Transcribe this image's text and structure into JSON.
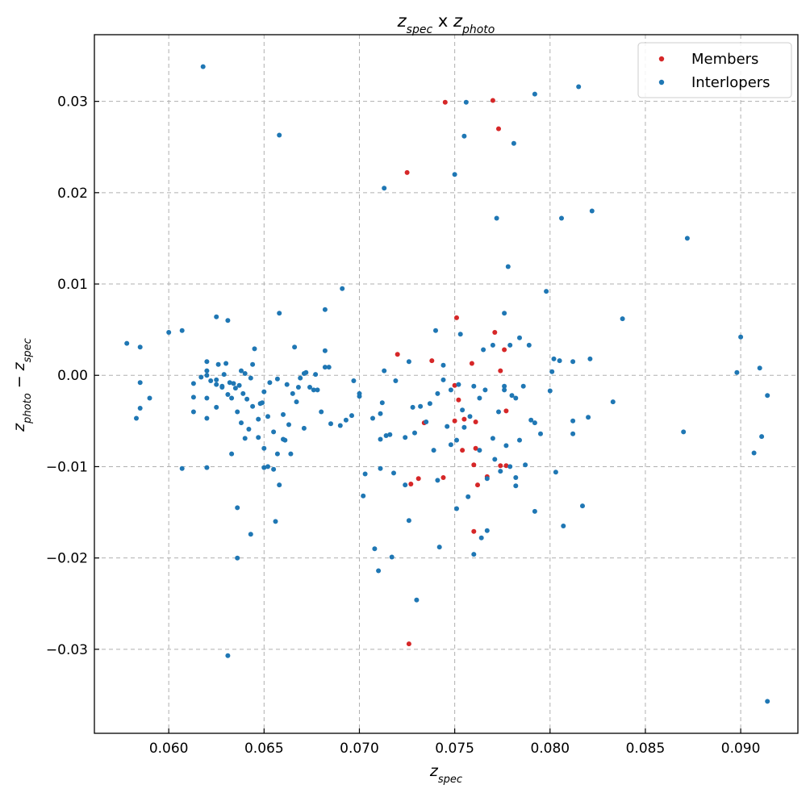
{
  "chart_data": {
    "type": "scatter",
    "title": {
      "var1": "z",
      "sub1": "spec",
      "sep": " x ",
      "var2": "z",
      "sub2": "photo"
    },
    "xlabel": {
      "var": "z",
      "sub": "spec"
    },
    "ylabel": {
      "var1": "z",
      "sub1": "photo",
      "op": " − ",
      "var2": "z",
      "sub2": "spec"
    },
    "xlim": [
      0.0561,
      0.093
    ],
    "ylim": [
      -0.0392,
      0.0373
    ],
    "x_ticks": [
      0.06,
      0.065,
      0.07,
      0.075,
      0.08,
      0.085,
      0.09
    ],
    "x_tick_labels": [
      "0.060",
      "0.065",
      "0.070",
      "0.075",
      "0.080",
      "0.085",
      "0.090"
    ],
    "y_ticks": [
      -0.03,
      -0.02,
      -0.01,
      0.0,
      0.01,
      0.02,
      0.03
    ],
    "y_tick_labels": [
      "−0.03",
      "−0.02",
      "−0.01",
      "0.00",
      "0.01",
      "0.02",
      "0.03"
    ],
    "grid": true,
    "legend_position": "top-right",
    "series": [
      {
        "name": "Members",
        "color": "#d62728",
        "points": [
          [
            0.0745,
            0.0299
          ],
          [
            0.077,
            0.0301
          ],
          [
            0.0773,
            0.027
          ],
          [
            0.0725,
            0.0222
          ],
          [
            0.0751,
            0.0063
          ],
          [
            0.0771,
            0.0047
          ],
          [
            0.0776,
            0.0028
          ],
          [
            0.072,
            0.0023
          ],
          [
            0.0738,
            0.0016
          ],
          [
            0.0759,
            0.0013
          ],
          [
            0.0774,
            0.0005
          ],
          [
            0.075,
            -0.0011
          ],
          [
            0.0752,
            -0.0027
          ],
          [
            0.0755,
            -0.0048
          ],
          [
            0.075,
            -0.005
          ],
          [
            0.0734,
            -0.0052
          ],
          [
            0.0761,
            -0.0051
          ],
          [
            0.0777,
            -0.0039
          ],
          [
            0.0754,
            -0.0082
          ],
          [
            0.0761,
            -0.008
          ],
          [
            0.076,
            -0.0098
          ],
          [
            0.0774,
            -0.0099
          ],
          [
            0.0777,
            -0.0099
          ],
          [
            0.0767,
            -0.0111
          ],
          [
            0.0744,
            -0.0112
          ],
          [
            0.0731,
            -0.0113
          ],
          [
            0.0727,
            -0.0119
          ],
          [
            0.0762,
            -0.012
          ],
          [
            0.076,
            -0.0171
          ],
          [
            0.0726,
            -0.0294
          ]
        ]
      },
      {
        "name": "Interlopers",
        "color": "#1f77b4",
        "points": [
          [
            0.0618,
            0.0338
          ],
          [
            0.0658,
            0.0263
          ],
          [
            0.0756,
            0.0299
          ],
          [
            0.0792,
            0.0308
          ],
          [
            0.0815,
            0.0316
          ],
          [
            0.0755,
            0.0262
          ],
          [
            0.0781,
            0.0254
          ],
          [
            0.075,
            0.022
          ],
          [
            0.0713,
            0.0205
          ],
          [
            0.0772,
            0.0172
          ],
          [
            0.0806,
            0.0172
          ],
          [
            0.0822,
            0.018
          ],
          [
            0.0872,
            0.015
          ],
          [
            0.0778,
            0.0119
          ],
          [
            0.0691,
            0.0095
          ],
          [
            0.0798,
            0.0092
          ],
          [
            0.0682,
            0.0072
          ],
          [
            0.0658,
            0.0068
          ],
          [
            0.0625,
            0.0064
          ],
          [
            0.0631,
            0.006
          ],
          [
            0.0838,
            0.0062
          ],
          [
            0.06,
            0.0047
          ],
          [
            0.0607,
            0.0049
          ],
          [
            0.074,
            0.0049
          ],
          [
            0.0753,
            0.0045
          ],
          [
            0.09,
            0.0042
          ],
          [
            0.0776,
            0.0068
          ],
          [
            0.0578,
            0.0035
          ],
          [
            0.0585,
            0.0031
          ],
          [
            0.0645,
            0.0029
          ],
          [
            0.0666,
            0.0031
          ],
          [
            0.0682,
            0.0027
          ],
          [
            0.0765,
            0.0028
          ],
          [
            0.077,
            0.0033
          ],
          [
            0.0779,
            0.0033
          ],
          [
            0.0784,
            0.0041
          ],
          [
            0.0789,
            0.0033
          ],
          [
            0.062,
            0.0015
          ],
          [
            0.063,
            0.0013
          ],
          [
            0.0644,
            0.0012
          ],
          [
            0.0682,
            0.0009
          ],
          [
            0.0713,
            0.0005
          ],
          [
            0.0726,
            0.0015
          ],
          [
            0.0744,
            0.0011
          ],
          [
            0.0802,
            0.0018
          ],
          [
            0.0805,
            0.0016
          ],
          [
            0.0812,
            0.0015
          ],
          [
            0.0821,
            0.0018
          ],
          [
            0.0898,
            0.0003
          ],
          [
            0.091,
            0.0008
          ],
          [
            0.0585,
            -0.0008
          ],
          [
            0.059,
            -0.0025
          ],
          [
            0.0585,
            -0.0036
          ],
          [
            0.0583,
            -0.0047
          ],
          [
            0.0613,
            -0.0009
          ],
          [
            0.0613,
            -0.0024
          ],
          [
            0.0613,
            -0.004
          ],
          [
            0.062,
            -0.0025
          ],
          [
            0.062,
            -0.0047
          ],
          [
            0.0625,
            -0.001
          ],
          [
            0.0628,
            -0.0013
          ],
          [
            0.0633,
            -0.0025
          ],
          [
            0.0636,
            -0.004
          ],
          [
            0.0638,
            -0.0052
          ],
          [
            0.0642,
            -0.0059
          ],
          [
            0.0644,
            -0.0034
          ],
          [
            0.0649,
            -0.003
          ],
          [
            0.065,
            -0.0018
          ],
          [
            0.0652,
            -0.0045
          ],
          [
            0.0655,
            -0.0062
          ],
          [
            0.066,
            -0.0043
          ],
          [
            0.0663,
            -0.0054
          ],
          [
            0.0667,
            -0.0029
          ],
          [
            0.0671,
            -0.0058
          ],
          [
            0.0676,
            -0.0016
          ],
          [
            0.068,
            -0.004
          ],
          [
            0.0685,
            -0.0053
          ],
          [
            0.069,
            -0.0055
          ],
          [
            0.0697,
            -0.0006
          ],
          [
            0.07,
            -0.002
          ],
          [
            0.0703,
            -0.0108
          ],
          [
            0.0707,
            -0.0047
          ],
          [
            0.0711,
            -0.007
          ],
          [
            0.0712,
            -0.003
          ],
          [
            0.0716,
            -0.0065
          ],
          [
            0.0719,
            -0.0006
          ],
          [
            0.0724,
            -0.0068
          ],
          [
            0.0728,
            -0.0035
          ],
          [
            0.0735,
            -0.0051
          ],
          [
            0.0739,
            -0.0082
          ],
          [
            0.0741,
            -0.002
          ],
          [
            0.0744,
            -0.0005
          ],
          [
            0.0746,
            -0.0056
          ],
          [
            0.0748,
            -0.0016
          ],
          [
            0.0752,
            -0.001
          ],
          [
            0.0755,
            -0.0057
          ],
          [
            0.0757,
            -0.0133
          ],
          [
            0.076,
            -0.0012
          ],
          [
            0.0763,
            -0.0025
          ],
          [
            0.0766,
            -0.0016
          ],
          [
            0.077,
            -0.0069
          ],
          [
            0.0773,
            -0.004
          ],
          [
            0.0776,
            -0.0012
          ],
          [
            0.0777,
            -0.0077
          ],
          [
            0.0779,
            -0.01
          ],
          [
            0.0782,
            -0.0025
          ],
          [
            0.0784,
            -0.0071
          ],
          [
            0.0786,
            -0.0012
          ],
          [
            0.079,
            -0.0049
          ],
          [
            0.0792,
            -0.0052
          ],
          [
            0.0795,
            -0.0064
          ],
          [
            0.08,
            -0.0017
          ],
          [
            0.0801,
            0.0004
          ],
          [
            0.0803,
            -0.0106
          ],
          [
            0.0812,
            -0.005
          ],
          [
            0.0812,
            -0.0064
          ],
          [
            0.082,
            -0.0046
          ],
          [
            0.0833,
            -0.0029
          ],
          [
            0.087,
            -0.0062
          ],
          [
            0.0907,
            -0.0085
          ],
          [
            0.0911,
            -0.0067
          ],
          [
            0.0914,
            -0.0022
          ],
          [
            0.0607,
            -0.0102
          ],
          [
            0.062,
            -0.0101
          ],
          [
            0.0633,
            -0.0086
          ],
          [
            0.065,
            -0.008
          ],
          [
            0.065,
            -0.0101
          ],
          [
            0.0655,
            -0.0103
          ],
          [
            0.0658,
            -0.012
          ],
          [
            0.0636,
            -0.0145
          ],
          [
            0.0656,
            -0.016
          ],
          [
            0.0643,
            -0.0174
          ],
          [
            0.0636,
            -0.02
          ],
          [
            0.0631,
            -0.0307
          ],
          [
            0.0711,
            -0.0102
          ],
          [
            0.0718,
            -0.0107
          ],
          [
            0.0724,
            -0.012
          ],
          [
            0.0741,
            -0.0115
          ],
          [
            0.0726,
            -0.0159
          ],
          [
            0.0708,
            -0.019
          ],
          [
            0.0717,
            -0.0199
          ],
          [
            0.071,
            -0.0214
          ],
          [
            0.0742,
            -0.0188
          ],
          [
            0.0751,
            -0.0146
          ],
          [
            0.076,
            -0.0196
          ],
          [
            0.0764,
            -0.0178
          ],
          [
            0.0767,
            -0.017
          ],
          [
            0.0782,
            -0.0112
          ],
          [
            0.0782,
            -0.0121
          ],
          [
            0.0787,
            -0.0098
          ],
          [
            0.0792,
            -0.0149
          ],
          [
            0.0807,
            -0.0165
          ],
          [
            0.0817,
            -0.0143
          ],
          [
            0.073,
            -0.0246
          ],
          [
            0.0914,
            -0.0357
          ],
          [
            0.0702,
            -0.0132
          ],
          [
            0.064,
            -0.0069
          ],
          [
            0.0668,
            -0.0013
          ],
          [
            0.0669,
            -0.0003
          ],
          [
            0.0672,
            0.0003
          ],
          [
            0.0677,
            0.0001
          ],
          [
            0.0625,
            -0.0035
          ],
          [
            0.062,
            0.0
          ],
          [
            0.062,
            0.0005
          ],
          [
            0.0638,
            0.0005
          ],
          [
            0.0647,
            -0.0048
          ],
          [
            0.0657,
            -0.0086
          ],
          [
            0.0661,
            -0.0071
          ],
          [
            0.0629,
            0.0001
          ],
          [
            0.0632,
            -0.0008
          ],
          [
            0.0635,
            -0.0014
          ],
          [
            0.0641,
            -0.0026
          ],
          [
            0.0647,
            -0.0068
          ],
          [
            0.0652,
            -0.01
          ],
          [
            0.066,
            -0.007
          ],
          [
            0.0664,
            -0.0086
          ],
          [
            0.0671,
            0.0002
          ],
          [
            0.0674,
            -0.0013
          ],
          [
            0.0678,
            -0.0016
          ],
          [
            0.0684,
            0.0009
          ],
          [
            0.0693,
            -0.0049
          ],
          [
            0.0696,
            -0.0044
          ],
          [
            0.07,
            -0.0023
          ],
          [
            0.0711,
            -0.0042
          ],
          [
            0.0714,
            -0.0066
          ],
          [
            0.0729,
            -0.0063
          ],
          [
            0.0732,
            -0.0034
          ],
          [
            0.0737,
            -0.0031
          ],
          [
            0.0748,
            -0.0076
          ],
          [
            0.0751,
            -0.0071
          ],
          [
            0.0754,
            -0.0038
          ],
          [
            0.0758,
            -0.0045
          ],
          [
            0.0763,
            -0.0082
          ],
          [
            0.0767,
            -0.0113
          ],
          [
            0.0771,
            -0.0092
          ],
          [
            0.0774,
            -0.0105
          ],
          [
            0.0776,
            -0.0016
          ],
          [
            0.078,
            -0.0022
          ],
          [
            0.0625,
            -0.0005
          ],
          [
            0.0628,
            -0.0012
          ],
          [
            0.0631,
            -0.0021
          ],
          [
            0.0634,
            -0.0009
          ],
          [
            0.0639,
            -0.002
          ],
          [
            0.0643,
            -0.0003
          ],
          [
            0.0648,
            -0.0031
          ],
          [
            0.0653,
            -0.0008
          ],
          [
            0.0657,
            -0.0004
          ],
          [
            0.0662,
            -0.001
          ],
          [
            0.0665,
            -0.002
          ],
          [
            0.0617,
            -0.0002
          ],
          [
            0.0622,
            -0.0006
          ],
          [
            0.0626,
            0.0012
          ],
          [
            0.0637,
            -0.0011
          ],
          [
            0.064,
            0.0002
          ]
        ]
      }
    ]
  }
}
